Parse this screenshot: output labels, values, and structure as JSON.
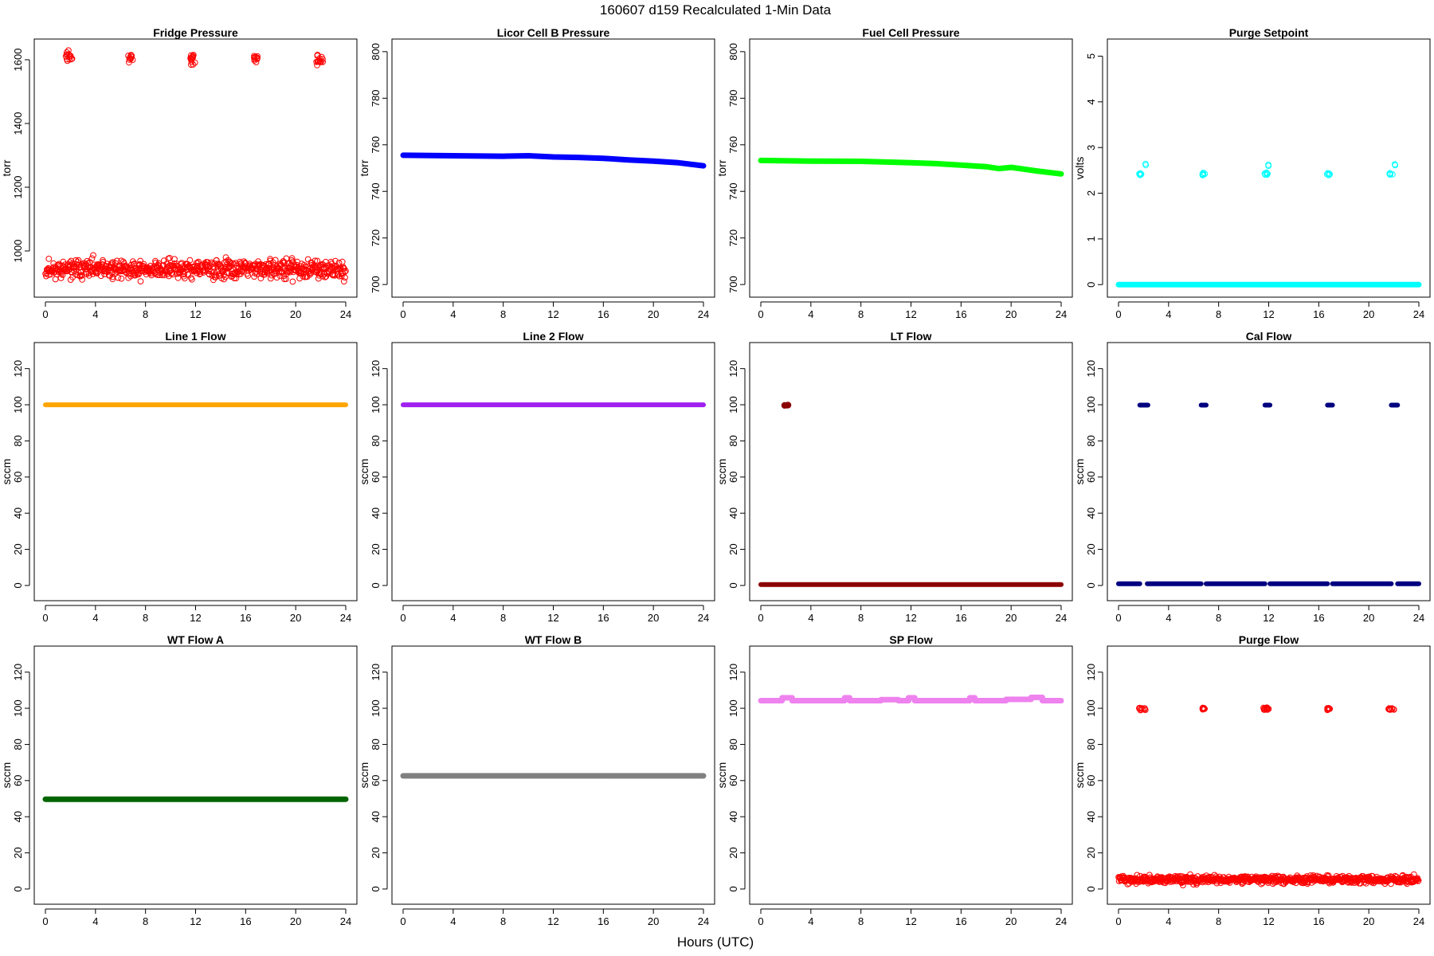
{
  "figure": {
    "title": "160607   d159   Recalculated 1-Min Data",
    "xlabel": "Hours (UTC)"
  },
  "chart_data": [
    {
      "type": "scatter",
      "title": "Fridge Pressure",
      "ylabel": "torr",
      "xlim": [
        0,
        24
      ],
      "xticks": [
        0,
        4,
        8,
        12,
        16,
        20,
        24
      ],
      "ylim": [
        880,
        1640
      ],
      "yticks": [
        1000,
        1200,
        1400,
        1600
      ],
      "color": "#ff0000",
      "marker": "open-circle",
      "series": [
        {
          "kind": "noise",
          "mean": 943,
          "spread": 50,
          "count": 720,
          "seed": 11
        },
        {
          "kind": "cluster",
          "x": 1.9,
          "width": 0.55,
          "mean": 1612,
          "spread": 28,
          "count": 14,
          "seed": 12
        },
        {
          "kind": "cluster",
          "x": 6.8,
          "width": 0.35,
          "mean": 1607,
          "spread": 22,
          "count": 10,
          "seed": 13
        },
        {
          "kind": "cluster",
          "x": 11.8,
          "width": 0.45,
          "mean": 1605,
          "spread": 42,
          "count": 14,
          "seed": 14
        },
        {
          "kind": "cluster",
          "x": 16.8,
          "width": 0.35,
          "mean": 1605,
          "spread": 22,
          "count": 10,
          "seed": 15
        },
        {
          "kind": "cluster",
          "x": 21.9,
          "width": 0.55,
          "mean": 1597,
          "spread": 28,
          "count": 14,
          "seed": 16
        }
      ]
    },
    {
      "type": "line",
      "title": "Licor Cell B Pressure",
      "ylabel": "torr",
      "xlim": [
        0,
        24
      ],
      "xticks": [
        0,
        4,
        8,
        12,
        16,
        20,
        24
      ],
      "ylim": [
        698,
        802
      ],
      "yticks": [
        700,
        720,
        740,
        760,
        780,
        800
      ],
      "color": "#0000ff",
      "thickness": 7,
      "series": [
        {
          "kind": "line",
          "x": [
            0,
            4,
            8,
            10,
            12,
            14,
            16,
            18,
            20,
            22,
            24
          ],
          "y": [
            755.5,
            755.3,
            755.1,
            755.3,
            754.8,
            754.6,
            754.2,
            753.5,
            753.0,
            752.3,
            751.0
          ]
        }
      ]
    },
    {
      "type": "line",
      "title": "Fuel Cell Pressure",
      "ylabel": "torr",
      "xlim": [
        0,
        24
      ],
      "xticks": [
        0,
        4,
        8,
        12,
        16,
        20,
        24
      ],
      "ylim": [
        698,
        802
      ],
      "yticks": [
        700,
        720,
        740,
        760,
        780,
        800
      ],
      "color": "#00ff00",
      "thickness": 7,
      "series": [
        {
          "kind": "line",
          "x": [
            0,
            4,
            8,
            12,
            14,
            16,
            18,
            19,
            20,
            22,
            24
          ],
          "y": [
            753.3,
            753.0,
            752.9,
            752.3,
            751.9,
            751.3,
            750.6,
            749.8,
            750.3,
            748.8,
            747.5
          ]
        }
      ]
    },
    {
      "type": "scatter",
      "title": "Purge Setpoint",
      "ylabel": "volts",
      "xlim": [
        0,
        24
      ],
      "xticks": [
        0,
        4,
        8,
        12,
        16,
        20,
        24
      ],
      "ylim": [
        -0.1,
        5.2
      ],
      "yticks": [
        0,
        1,
        2,
        3,
        4,
        5
      ],
      "color": "#00ffff",
      "marker": "open-circle",
      "series": [
        {
          "kind": "line",
          "x": [
            0,
            24
          ],
          "y": [
            0,
            0
          ],
          "thickness": 7
        },
        {
          "kind": "cluster",
          "x": 1.8,
          "width": 0.3,
          "mean": 2.42,
          "spread": 0.06,
          "count": 6,
          "seed": 21
        },
        {
          "kind": "cluster",
          "x": 2.2,
          "width": 0.1,
          "mean": 2.62,
          "spread": 0.04,
          "count": 2,
          "seed": 22
        },
        {
          "kind": "cluster",
          "x": 6.8,
          "width": 0.3,
          "mean": 2.42,
          "spread": 0.06,
          "count": 6,
          "seed": 23
        },
        {
          "kind": "cluster",
          "x": 11.8,
          "width": 0.3,
          "mean": 2.42,
          "spread": 0.06,
          "count": 6,
          "seed": 24
        },
        {
          "kind": "cluster",
          "x": 12.0,
          "width": 0.1,
          "mean": 2.62,
          "spread": 0.04,
          "count": 2,
          "seed": 25
        },
        {
          "kind": "cluster",
          "x": 16.8,
          "width": 0.3,
          "mean": 2.42,
          "spread": 0.06,
          "count": 6,
          "seed": 26
        },
        {
          "kind": "cluster",
          "x": 21.8,
          "width": 0.3,
          "mean": 2.42,
          "spread": 0.06,
          "count": 6,
          "seed": 27
        },
        {
          "kind": "cluster",
          "x": 22.1,
          "width": 0.1,
          "mean": 2.62,
          "spread": 0.04,
          "count": 2,
          "seed": 28
        }
      ]
    },
    {
      "type": "line",
      "title": "Line 1 Flow",
      "ylabel": "sccm",
      "xlim": [
        0,
        24
      ],
      "xticks": [
        0,
        4,
        8,
        12,
        16,
        20,
        24
      ],
      "ylim": [
        -4,
        130
      ],
      "yticks": [
        0,
        20,
        40,
        60,
        80,
        100,
        120
      ],
      "color": "#ffa500",
      "thickness": 6,
      "series": [
        {
          "kind": "line",
          "x": [
            0,
            24
          ],
          "y": [
            100,
            100
          ]
        }
      ]
    },
    {
      "type": "line",
      "title": "Line 2 Flow",
      "ylabel": "sccm",
      "xlim": [
        0,
        24
      ],
      "xticks": [
        0,
        4,
        8,
        12,
        16,
        20,
        24
      ],
      "ylim": [
        -4,
        130
      ],
      "yticks": [
        0,
        20,
        40,
        60,
        80,
        100,
        120
      ],
      "color": "#a020f0",
      "thickness": 6,
      "series": [
        {
          "kind": "line",
          "x": [
            0,
            24
          ],
          "y": [
            100,
            100
          ]
        }
      ]
    },
    {
      "type": "scatter",
      "title": "LT Flow",
      "ylabel": "sccm",
      "xlim": [
        0,
        24
      ],
      "xticks": [
        0,
        4,
        8,
        12,
        16,
        20,
        24
      ],
      "ylim": [
        -4,
        130
      ],
      "yticks": [
        0,
        20,
        40,
        60,
        80,
        100,
        120
      ],
      "color": "#8b0000",
      "marker": "filled-circle",
      "series": [
        {
          "kind": "line",
          "x": [
            0,
            24
          ],
          "y": [
            0.5,
            0.5
          ],
          "thickness": 6
        },
        {
          "kind": "cluster",
          "x": 2.0,
          "width": 0.4,
          "mean": 99.8,
          "spread": 0.5,
          "count": 8,
          "seed": 31
        }
      ]
    },
    {
      "type": "scatter",
      "title": "Cal Flow",
      "ylabel": "sccm",
      "xlim": [
        0,
        24
      ],
      "xticks": [
        0,
        4,
        8,
        12,
        16,
        20,
        24
      ],
      "ylim": [
        -4,
        130
      ],
      "yticks": [
        0,
        20,
        40,
        60,
        80,
        100,
        120
      ],
      "color": "#000080",
      "marker": "filled-circle",
      "series": [
        {
          "kind": "line",
          "x": [
            0,
            1.7
          ],
          "y": [
            1,
            1
          ],
          "thickness": 6
        },
        {
          "kind": "line",
          "x": [
            2.3,
            6.6
          ],
          "y": [
            1,
            1
          ],
          "thickness": 6
        },
        {
          "kind": "line",
          "x": [
            7.0,
            11.7
          ],
          "y": [
            1,
            1
          ],
          "thickness": 6
        },
        {
          "kind": "line",
          "x": [
            12.1,
            16.7
          ],
          "y": [
            1,
            1
          ],
          "thickness": 6
        },
        {
          "kind": "line",
          "x": [
            17.1,
            21.8
          ],
          "y": [
            1,
            1
          ],
          "thickness": 6
        },
        {
          "kind": "line",
          "x": [
            22.3,
            24
          ],
          "y": [
            1,
            1
          ],
          "thickness": 6
        },
        {
          "kind": "line",
          "x": [
            1.7,
            2.35
          ],
          "y": [
            99.8,
            99.8
          ],
          "thickness": 6
        },
        {
          "kind": "line",
          "x": [
            6.6,
            7.0
          ],
          "y": [
            99.8,
            99.8
          ],
          "thickness": 6
        },
        {
          "kind": "line",
          "x": [
            11.7,
            12.1
          ],
          "y": [
            99.8,
            99.8
          ],
          "thickness": 6
        },
        {
          "kind": "line",
          "x": [
            16.7,
            17.1
          ],
          "y": [
            99.8,
            99.8
          ],
          "thickness": 6
        },
        {
          "kind": "line",
          "x": [
            21.8,
            22.3
          ],
          "y": [
            99.8,
            99.8
          ],
          "thickness": 6
        }
      ]
    },
    {
      "type": "line",
      "title": "WT Flow A",
      "ylabel": "sccm",
      "xlim": [
        0,
        24
      ],
      "xticks": [
        0,
        4,
        8,
        12,
        16,
        20,
        24
      ],
      "ylim": [
        -4,
        130
      ],
      "yticks": [
        0,
        20,
        40,
        60,
        80,
        100,
        120
      ],
      "color": "#006400",
      "thickness": 7,
      "series": [
        {
          "kind": "line",
          "x": [
            0,
            24
          ],
          "y": [
            49.7,
            49.7
          ]
        }
      ]
    },
    {
      "type": "line",
      "title": "WT Flow B",
      "ylabel": "sccm",
      "xlim": [
        0,
        24
      ],
      "xticks": [
        0,
        4,
        8,
        12,
        16,
        20,
        24
      ],
      "ylim": [
        -4,
        130
      ],
      "yticks": [
        0,
        20,
        40,
        60,
        80,
        100,
        120
      ],
      "color": "#808080",
      "thickness": 7,
      "series": [
        {
          "kind": "line",
          "x": [
            0,
            24
          ],
          "y": [
            62.6,
            62.6
          ]
        }
      ]
    },
    {
      "type": "line",
      "title": "SP Flow",
      "ylabel": "sccm",
      "xlim": [
        0,
        24
      ],
      "xticks": [
        0,
        4,
        8,
        12,
        16,
        20,
        24
      ],
      "ylim": [
        -4,
        130
      ],
      "yticks": [
        0,
        20,
        40,
        60,
        80,
        100,
        120
      ],
      "color": "#ee82ee",
      "thickness": 7,
      "series": [
        {
          "kind": "line",
          "x": [
            0,
            1.7,
            1.7,
            2.5,
            2.5,
            6.7,
            6.7,
            7.1,
            7.1,
            9.6,
            9.6,
            11.0,
            11.0,
            11.8,
            11.8,
            12.3,
            12.3,
            16.7,
            16.7,
            17.1,
            17.1,
            19.6,
            19.6,
            21.6,
            21.6,
            22.5,
            22.5,
            24
          ],
          "y": [
            104.2,
            104.2,
            105.8,
            105.8,
            104.2,
            104.2,
            105.8,
            105.8,
            104.2,
            104.2,
            104.8,
            104.8,
            104.2,
            104.2,
            105.8,
            105.8,
            104.2,
            104.2,
            105.8,
            105.8,
            104.2,
            104.2,
            104.9,
            104.9,
            106.0,
            106.0,
            104.2,
            104.2
          ]
        }
      ]
    },
    {
      "type": "scatter",
      "title": "Purge Flow",
      "ylabel": "sccm",
      "xlim": [
        0,
        24
      ],
      "xticks": [
        0,
        4,
        8,
        12,
        16,
        20,
        24
      ],
      "ylim": [
        -4,
        130
      ],
      "yticks": [
        0,
        20,
        40,
        60,
        80,
        100,
        120
      ],
      "color": "#ff0000",
      "marker": "open-circle",
      "series": [
        {
          "kind": "noise",
          "mean": 5.2,
          "spread": 3.5,
          "count": 720,
          "seed": 41
        },
        {
          "kind": "cluster",
          "x": 1.9,
          "width": 0.5,
          "mean": 99.6,
          "spread": 1.2,
          "count": 12,
          "seed": 42
        },
        {
          "kind": "cluster",
          "x": 6.8,
          "width": 0.3,
          "mean": 100.0,
          "spread": 1.0,
          "count": 8,
          "seed": 43
        },
        {
          "kind": "cluster",
          "x": 11.8,
          "width": 0.45,
          "mean": 99.8,
          "spread": 1.4,
          "count": 12,
          "seed": 44
        },
        {
          "kind": "cluster",
          "x": 16.8,
          "width": 0.3,
          "mean": 99.6,
          "spread": 1.0,
          "count": 8,
          "seed": 45
        },
        {
          "kind": "cluster",
          "x": 21.8,
          "width": 0.45,
          "mean": 99.6,
          "spread": 1.0,
          "count": 10,
          "seed": 46
        }
      ]
    }
  ]
}
